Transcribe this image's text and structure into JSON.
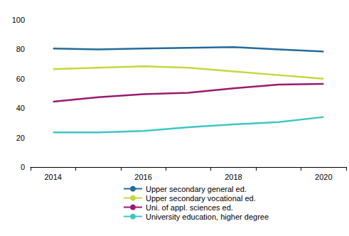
{
  "chart_data": {
    "type": "line",
    "categories": [
      "2014",
      null,
      "2016",
      null,
      "2018",
      null,
      "2020"
    ],
    "series": [
      {
        "name": "Upper secondary general ed.",
        "color": "#236b9b",
        "values": [
          80.5,
          80,
          80.5,
          81,
          81.5,
          80,
          78.5
        ]
      },
      {
        "name": "Upper secondary vocational ed.",
        "color": "#c5d83c",
        "values": [
          66.5,
          67.5,
          68.5,
          67.5,
          65,
          62.5,
          60
        ]
      },
      {
        "name": "Uni. of appl. sciences ed.",
        "color": "#9b1b6f",
        "values": [
          44.5,
          47.5,
          49.5,
          50.5,
          53.5,
          56,
          56.5
        ]
      },
      {
        "name": "University education, higher degree",
        "color": "#3fc6c4",
        "values": [
          23.5,
          23.5,
          24.5,
          27,
          29,
          30.5,
          34
        ]
      }
    ],
    "ylim": [
      0,
      100
    ],
    "yticks": [
      0,
      20,
      40,
      60,
      80,
      100
    ],
    "grid": false,
    "legend": "bottom"
  }
}
